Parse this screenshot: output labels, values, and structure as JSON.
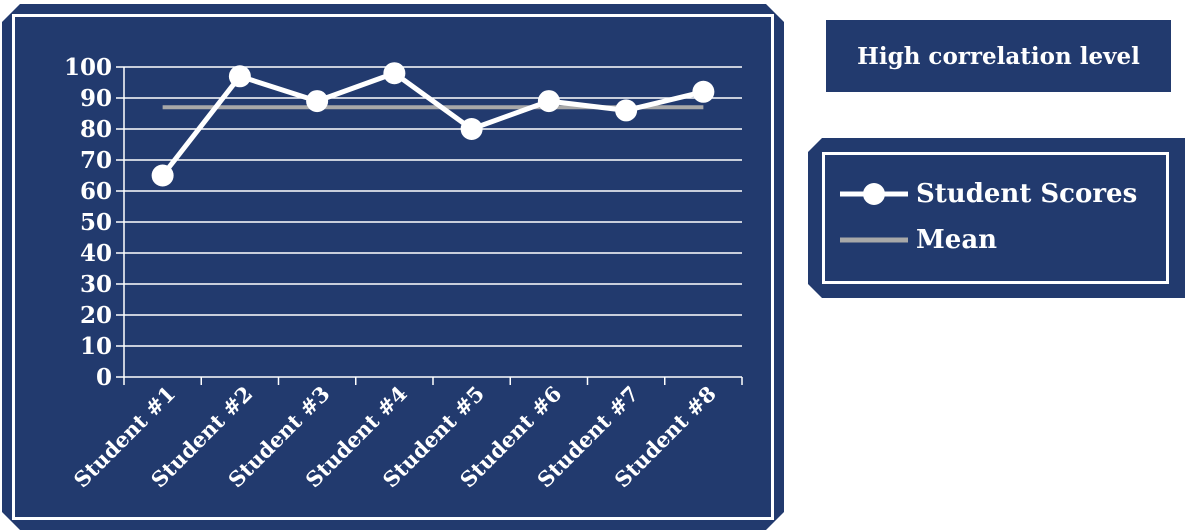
{
  "annotation": {
    "text": "High correlation level"
  },
  "legend": {
    "items": [
      {
        "label": "Student Scores",
        "icon": "line-with-circle-marker"
      },
      {
        "label": "Mean",
        "icon": "line"
      }
    ]
  },
  "colors": {
    "background": "#223a6e",
    "scores_line": "#ffffff",
    "mean_line": "#a8a8a8",
    "grid": "#ffffff",
    "text": "#ffffff"
  },
  "chart_data": {
    "type": "line",
    "title": "",
    "xlabel": "",
    "ylabel": "",
    "categories": [
      "Student #1",
      "Student #2",
      "Student #3",
      "Student #4",
      "Student #5",
      "Student #6",
      "Student #7",
      "Student #8"
    ],
    "yticks": [
      0,
      10,
      20,
      30,
      40,
      50,
      60,
      70,
      80,
      90,
      100
    ],
    "ylim": [
      0,
      100
    ],
    "grid": true,
    "legend_position": "right",
    "series": [
      {
        "name": "Student Scores",
        "values": [
          65,
          97,
          89,
          98,
          80,
          89,
          86,
          92
        ]
      },
      {
        "name": "Mean",
        "values": [
          87,
          87,
          87,
          87,
          87,
          87,
          87,
          87
        ]
      }
    ]
  }
}
